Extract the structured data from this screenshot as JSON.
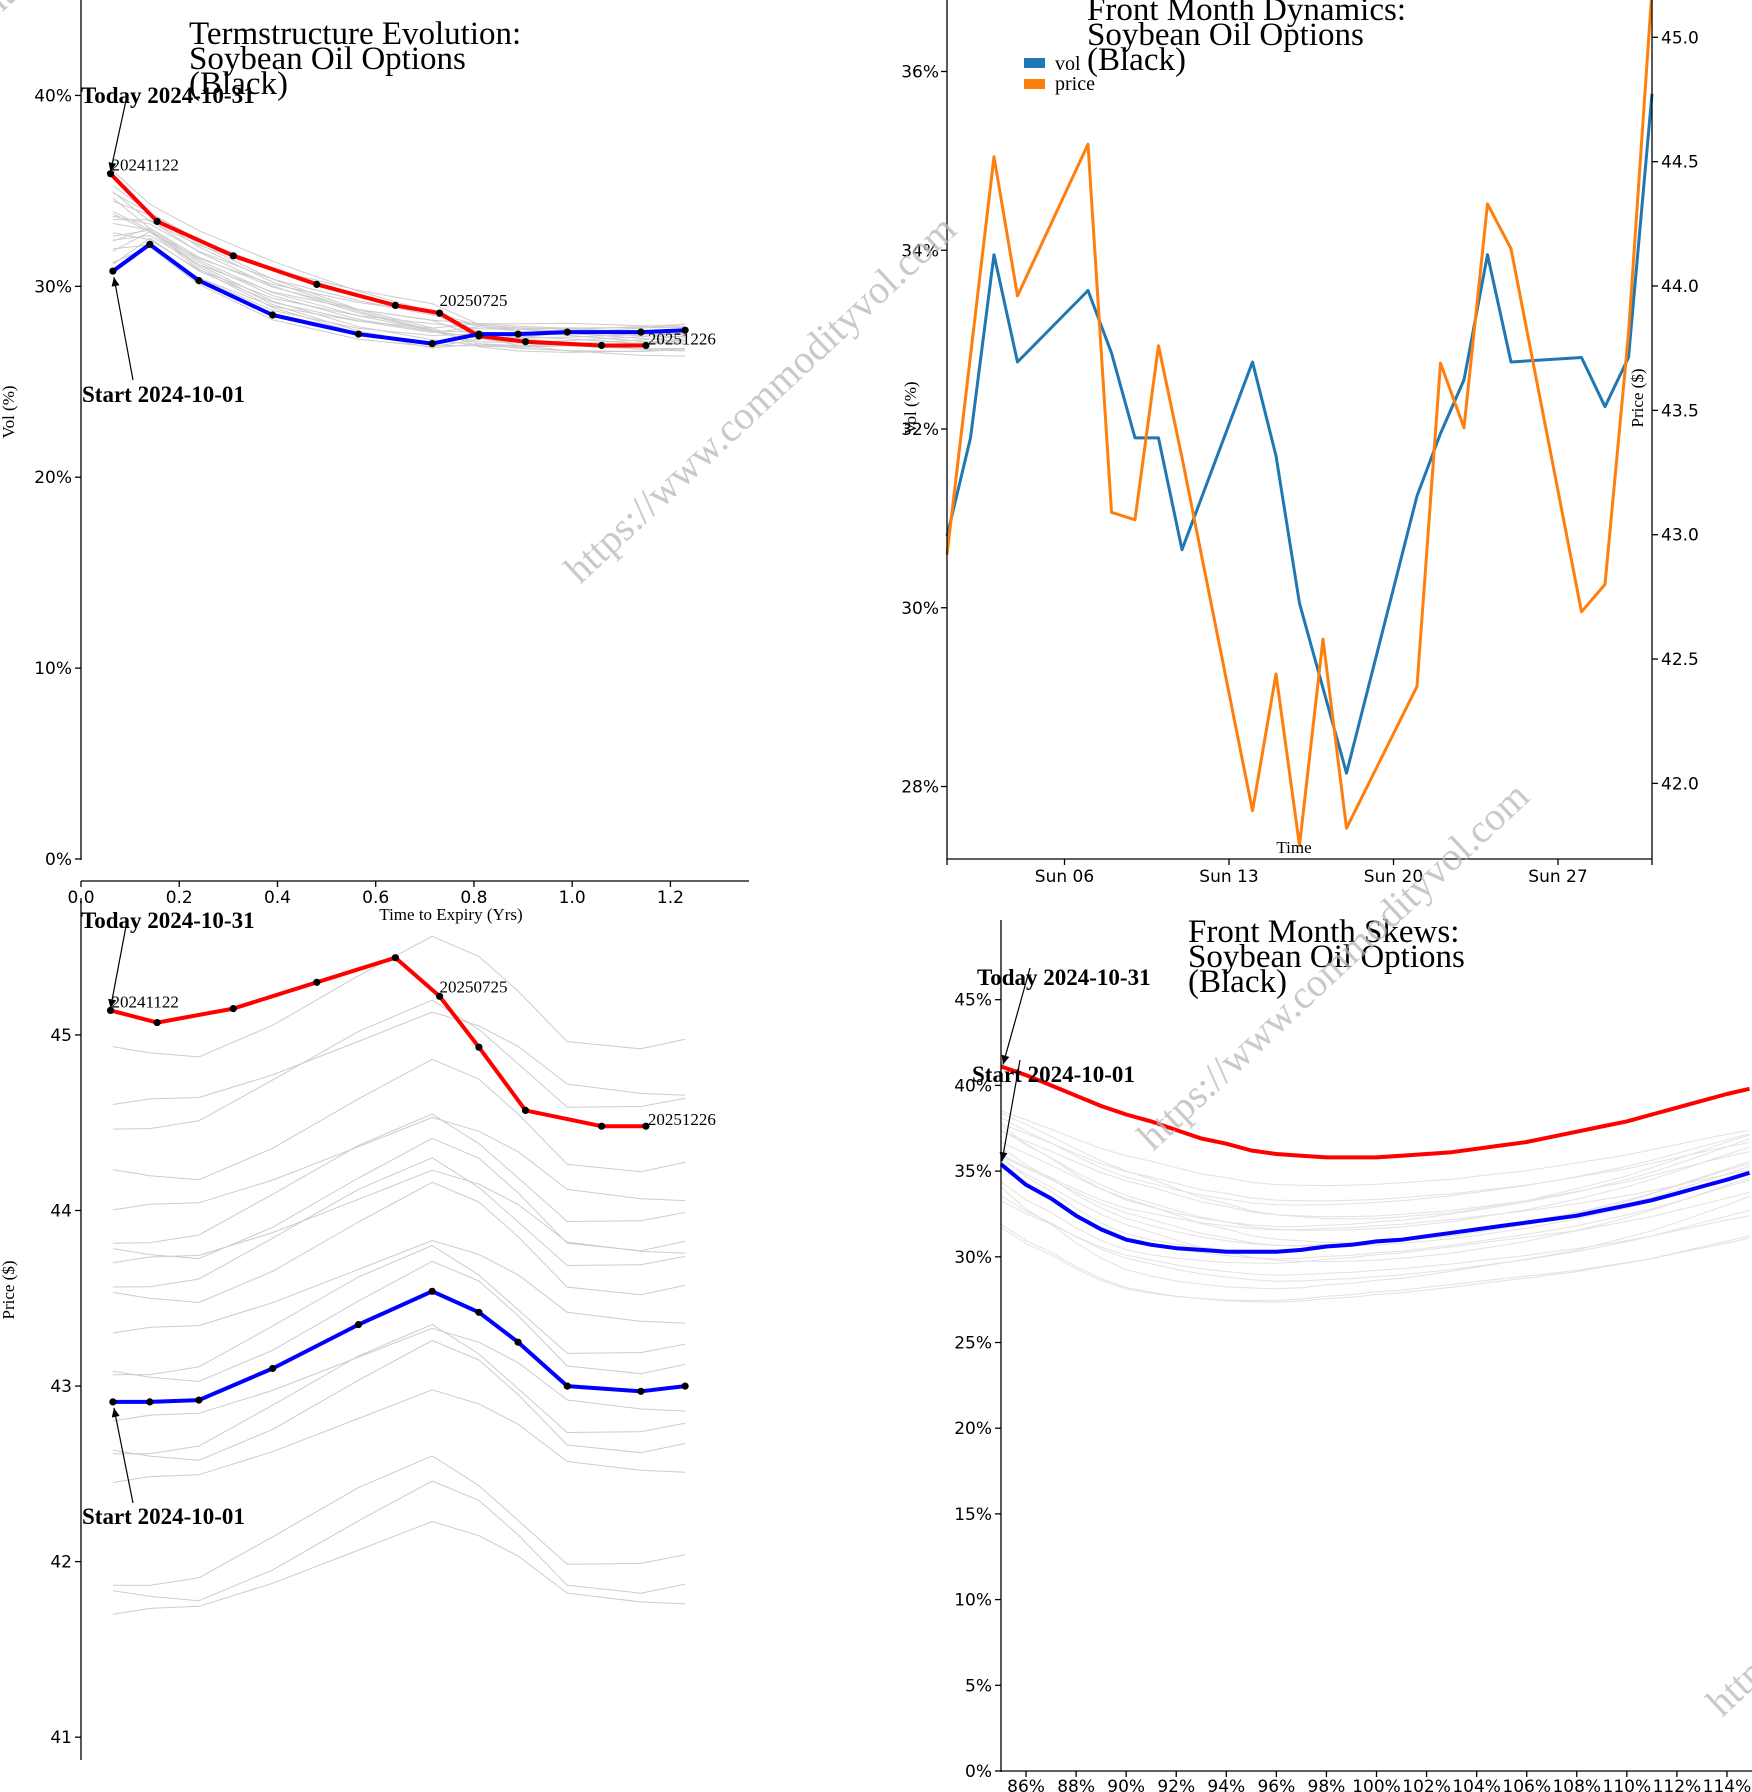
{
  "colors": {
    "today": "#ff0000",
    "start": "#0000ff",
    "history": "#cccccc",
    "vol": "#1f77b4",
    "price": "#ff7f0e",
    "point": "#000000"
  },
  "watermark": "https://www.commodityvol.com",
  "charts": {
    "term_vol": {
      "title": [
        "Termstructure Evolution:",
        "Soybean Oil Options",
        "(Black)"
      ],
      "xlabel": "Time to Expiry (Yrs)",
      "ylabel": "Vol (%)",
      "today_label": "Today 2024-10-31",
      "start_label": "Start 2024-10-01",
      "contract_labels": [
        "20241122",
        "20250725",
        "20251226"
      ]
    },
    "dynamics": {
      "title": [
        "Front Month Dynamics:",
        "Soybean Oil Options",
        "(Black)"
      ],
      "xlabel": "Time",
      "ylabel_left": "Vol (%)",
      "ylabel_right": "Price ($)",
      "legend": [
        "vol",
        "price"
      ]
    },
    "term_price": {
      "ylabel": "Price ($)",
      "today_label": "Today 2024-10-31",
      "start_label": "Start 2024-10-01",
      "contract_labels": [
        "20241122",
        "20250725",
        "20251226"
      ]
    },
    "skews": {
      "title": [
        "Front Month Skews:",
        "Soybean Oil Options",
        "(Black)"
      ],
      "today_label": "Today 2024-10-31",
      "start_label": "Start 2024-10-01"
    }
  },
  "chart_data": [
    {
      "type": "line",
      "id": "term_vol",
      "title": "Termstructure Evolution: Soybean Oil Options (Black)",
      "xlabel": "Time to Expiry (Yrs)",
      "ylabel": "Vol (%)",
      "xlim": [
        0,
        1.36
      ],
      "ylim": [
        0,
        45
      ],
      "xticks": [
        0.0,
        0.2,
        0.4,
        0.6,
        0.8,
        1.0,
        1.2
      ],
      "xtick_labels": [
        "0.0",
        "0.2",
        "0.4",
        "0.6",
        "0.8",
        "1.0",
        "1.2"
      ],
      "yticks": [
        0,
        10,
        20,
        30,
        40
      ],
      "ytick_labels": [
        "0%",
        "10%",
        "20%",
        "30%",
        "40%"
      ],
      "series": [
        {
          "name": "Today 2024-10-31",
          "x": [
            0.06,
            0.155,
            0.31,
            0.48,
            0.64,
            0.73,
            0.81,
            0.905,
            1.06,
            1.15
          ],
          "values": [
            35.9,
            33.4,
            31.6,
            30.1,
            29.0,
            28.6,
            27.4,
            27.1,
            26.9,
            26.9
          ]
        },
        {
          "name": "Start 2024-10-01",
          "x": [
            0.065,
            0.14,
            0.24,
            0.39,
            0.565,
            0.715,
            0.81,
            0.89,
            0.99,
            1.14,
            1.23
          ],
          "values": [
            30.8,
            32.2,
            30.3,
            28.5,
            27.5,
            27.0,
            27.5,
            27.5,
            27.6,
            27.6,
            27.7
          ]
        }
      ],
      "history_count": 20
    },
    {
      "type": "line",
      "id": "dynamics",
      "title": "Front Month Dynamics: Soybean Oil Options (Black)",
      "xlabel": "Time",
      "ylabel": "Vol (%)",
      "ylabel_right": "Price ($)",
      "x_domain_days": [
        1,
        31
      ],
      "xticks_days": [
        6,
        13,
        20,
        27
      ],
      "xtick_labels": [
        "Sun 06",
        "Sun 13",
        "Sun 20",
        "Sun 27"
      ],
      "ylim": [
        27.2,
        36.8
      ],
      "yticks": [
        28,
        30,
        32,
        34,
        36
      ],
      "ytick_labels": [
        "28%",
        "30%",
        "32%",
        "34%",
        "36%"
      ],
      "ylim_right": [
        41.7,
        45.15
      ],
      "yticks_right": [
        42.0,
        42.5,
        43.0,
        43.5,
        44.0,
        44.5,
        45.0
      ],
      "ytick_labels_right": [
        "42.0",
        "42.5",
        "43.0",
        "43.5",
        "44.0",
        "44.5",
        "45.0"
      ],
      "legend": [
        "vol",
        "price"
      ],
      "series": [
        {
          "name": "vol",
          "axis": "left",
          "x": [
            1,
            2,
            3,
            4,
            7,
            8,
            9,
            10,
            11,
            14,
            15,
            16,
            18,
            21,
            22,
            23,
            24,
            25,
            28,
            29,
            30,
            31
          ],
          "values": [
            30.8,
            31.9,
            33.95,
            32.75,
            33.55,
            32.85,
            31.9,
            31.9,
            30.65,
            32.75,
            31.7,
            30.05,
            28.15,
            31.25,
            31.95,
            32.55,
            33.95,
            32.75,
            32.8,
            32.25,
            32.8,
            35.75
          ]
        },
        {
          "name": "price",
          "axis": "right",
          "x": [
            1,
            3,
            4,
            7,
            8,
            9,
            10,
            11,
            14,
            15,
            16,
            17,
            18,
            21,
            22,
            23,
            24,
            25,
            28,
            29,
            30,
            31
          ],
          "values": [
            42.92,
            44.52,
            43.96,
            44.57,
            43.09,
            43.06,
            43.76,
            43.31,
            41.89,
            42.44,
            41.75,
            42.58,
            41.82,
            42.39,
            43.69,
            43.43,
            44.33,
            44.15,
            42.69,
            42.8,
            43.81,
            45.19
          ]
        }
      ]
    },
    {
      "type": "line",
      "id": "term_price",
      "title": "",
      "xlabel": "",
      "ylabel": "Price ($)",
      "xlim": [
        0,
        1.36
      ],
      "ylim": [
        40.87,
        45.78
      ],
      "yticks": [
        41,
        42,
        43,
        44,
        45
      ],
      "ytick_labels": [
        "41",
        "42",
        "43",
        "44",
        "45"
      ],
      "series": [
        {
          "name": "Today 2024-10-31",
          "x": [
            0.06,
            0.155,
            0.31,
            0.48,
            0.64,
            0.73,
            0.81,
            0.905,
            1.06,
            1.15
          ],
          "values": [
            45.14,
            45.07,
            45.15,
            45.3,
            45.44,
            45.22,
            44.93,
            44.57,
            44.48,
            44.48
          ]
        },
        {
          "name": "Start 2024-10-01",
          "x": [
            0.065,
            0.14,
            0.24,
            0.39,
            0.565,
            0.715,
            0.81,
            0.89,
            0.99,
            1.14,
            1.23
          ],
          "values": [
            42.91,
            42.91,
            42.92,
            43.1,
            43.35,
            43.54,
            43.42,
            43.25,
            43.0,
            42.97,
            43.0
          ]
        }
      ],
      "history_count": 20
    },
    {
      "type": "line",
      "id": "skews",
      "title": "Front Month Skews: Soybean Oil Options (Black)",
      "xlim": [
        85,
        115
      ],
      "ylim": [
        0,
        50
      ],
      "xticks": [
        86,
        88,
        90,
        92,
        94,
        96,
        98,
        100,
        102,
        104,
        106,
        108,
        110,
        112,
        114
      ],
      "xtick_labels": [
        "86%",
        "88%",
        "90%",
        "92%",
        "94%",
        "96%",
        "98%",
        "100%",
        "102%",
        "104%",
        "106%",
        "108%",
        "110%",
        "112%",
        "114%"
      ],
      "yticks": [
        0,
        5,
        10,
        15,
        20,
        25,
        30,
        35,
        40,
        45
      ],
      "ytick_labels": [
        "0%",
        "5%",
        "10%",
        "15%",
        "20%",
        "25%",
        "30%",
        "35%",
        "40%",
        "45%"
      ],
      "series": [
        {
          "name": "Today 2024-10-31",
          "x": [
            85,
            86,
            87,
            88,
            89,
            90,
            91,
            92,
            93,
            94,
            95,
            96,
            97,
            98,
            99,
            100,
            101,
            102,
            103,
            104,
            105,
            106,
            107,
            108,
            109,
            110,
            111,
            112,
            113,
            114,
            114.9
          ],
          "values": [
            41.1,
            40.6,
            40.0,
            39.4,
            38.8,
            38.3,
            37.9,
            37.4,
            36.9,
            36.6,
            36.2,
            36.0,
            35.9,
            35.8,
            35.8,
            35.8,
            35.9,
            36.0,
            36.1,
            36.3,
            36.5,
            36.7,
            37.0,
            37.3,
            37.6,
            37.9,
            38.3,
            38.7,
            39.1,
            39.5,
            39.8
          ]
        },
        {
          "name": "Start 2024-10-01",
          "x": [
            85,
            86,
            87,
            88,
            89,
            90,
            91,
            92,
            93,
            94,
            95,
            96,
            97,
            98,
            99,
            100,
            101,
            102,
            103,
            104,
            105,
            106,
            107,
            108,
            109,
            110,
            111,
            112,
            113,
            114,
            114.9
          ],
          "values": [
            35.4,
            34.2,
            33.4,
            32.4,
            31.6,
            31.0,
            30.7,
            30.5,
            30.4,
            30.3,
            30.3,
            30.3,
            30.4,
            30.6,
            30.7,
            30.9,
            31.0,
            31.2,
            31.4,
            31.6,
            31.8,
            32.0,
            32.2,
            32.4,
            32.7,
            33.0,
            33.3,
            33.7,
            34.1,
            34.5,
            34.9
          ]
        }
      ],
      "history_count": 20
    }
  ]
}
